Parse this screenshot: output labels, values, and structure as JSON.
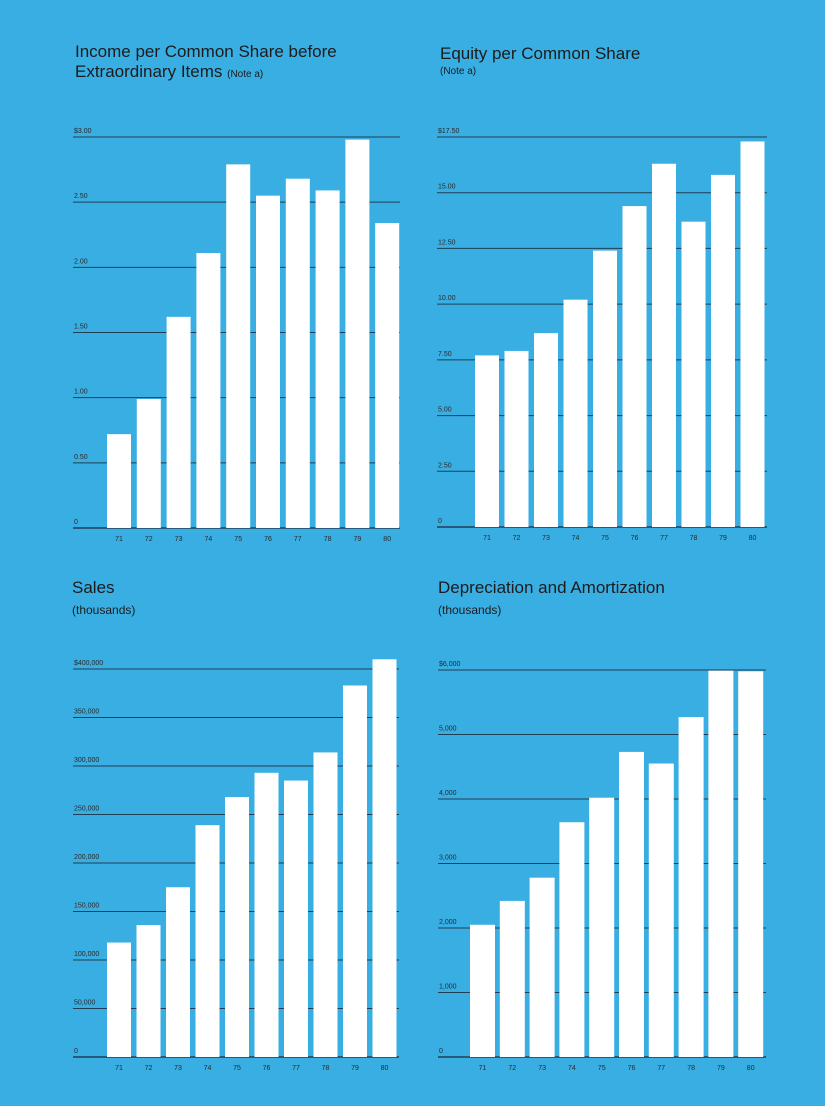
{
  "charts": [
    {
      "title_line1": "Income per Common Share before",
      "title_line2": "Extraordinary Items",
      "note": "(Note a)",
      "subtitle": ""
    },
    {
      "title_line1": "Equity per Common Share",
      "title_line2": "",
      "note": "",
      "subtitle": "(Note a)"
    },
    {
      "title_line1": "Sales",
      "title_line2": "",
      "note": "",
      "subtitle": "(thousands)"
    },
    {
      "title_line1": "Depreciation and Amortization",
      "title_line2": "",
      "note": "",
      "subtitle": "(thousands)"
    }
  ],
  "colors": {
    "background": "#39aee3",
    "bar": "#ffffff",
    "gridline": "#1f3f55"
  },
  "chart_data": [
    {
      "type": "bar",
      "title": "Income per Common Share before Extraordinary Items (Note a)",
      "categories": [
        "71",
        "72",
        "73",
        "74",
        "75",
        "76",
        "77",
        "78",
        "79",
        "80"
      ],
      "values": [
        0.72,
        0.99,
        1.62,
        2.11,
        2.79,
        2.55,
        2.68,
        2.59,
        2.98,
        2.34
      ],
      "ylim": [
        0,
        3.0
      ],
      "yticks": [
        0,
        0.5,
        1.0,
        1.5,
        2.0,
        2.5,
        3.0
      ],
      "ytick_labels": [
        "0",
        "0.50",
        "1.00",
        "1.50",
        "2.00",
        "2.50",
        "$3.00"
      ],
      "grid": true
    },
    {
      "type": "bar",
      "title": "Equity per Common Share",
      "subtitle": "(Note a)",
      "categories": [
        "71",
        "72",
        "73",
        "74",
        "75",
        "76",
        "77",
        "78",
        "79",
        "80"
      ],
      "values": [
        7.7,
        7.9,
        8.7,
        10.2,
        12.4,
        14.4,
        16.3,
        13.7,
        15.8,
        17.3
      ],
      "ylim": [
        0,
        17.5
      ],
      "yticks": [
        0,
        2.5,
        5.0,
        7.5,
        10.0,
        12.5,
        15.0,
        17.5
      ],
      "ytick_labels": [
        "0",
        "2.50",
        "5.00",
        "7.50",
        "10.00",
        "12.50",
        "15.00",
        "$17.50"
      ],
      "grid": true
    },
    {
      "type": "bar",
      "title": "Sales",
      "subtitle": "(thousands)",
      "categories": [
        "71",
        "72",
        "73",
        "74",
        "75",
        "76",
        "77",
        "78",
        "79",
        "80"
      ],
      "values": [
        118000,
        136000,
        175000,
        239000,
        268000,
        293000,
        285000,
        314000,
        383000,
        410000
      ],
      "ylim": [
        0,
        400000
      ],
      "yticks": [
        0,
        50000,
        100000,
        150000,
        200000,
        250000,
        300000,
        350000,
        400000
      ],
      "ytick_labels": [
        "0",
        "50,000",
        "100,000",
        "150,000",
        "200,000",
        "250,000",
        "300,000",
        "350,000",
        "$400,000"
      ],
      "grid": true
    },
    {
      "type": "bar",
      "title": "Depreciation and Amortization",
      "subtitle": "(thousands)",
      "categories": [
        "71",
        "72",
        "73",
        "74",
        "75",
        "76",
        "77",
        "78",
        "79",
        "80"
      ],
      "values": [
        2050,
        2420,
        2780,
        3640,
        4020,
        4730,
        4550,
        5270,
        5990,
        5980
      ],
      "ylim": [
        0,
        6000
      ],
      "yticks": [
        0,
        1000,
        2000,
        3000,
        4000,
        5000,
        6000
      ],
      "ytick_labels": [
        "0",
        "1,000",
        "2,000",
        "3,000",
        "4,000",
        "5,000",
        "$6,000"
      ],
      "grid": true
    }
  ]
}
